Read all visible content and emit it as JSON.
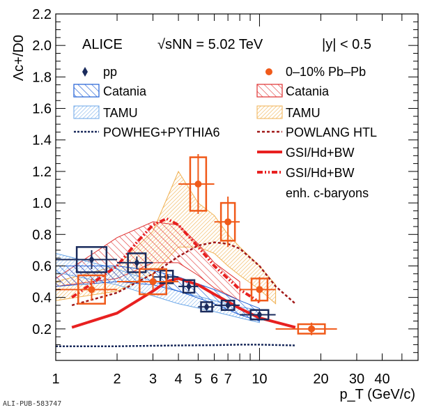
{
  "chart_data": {
    "type": "scatter",
    "title": "",
    "xlabel": "p_T (GeV/c)",
    "ylabel": "Λc+/D0",
    "xscale": "log",
    "xlim": [
      1,
      60
    ],
    "ylim": [
      0,
      2.2
    ],
    "x_ticks": [
      "1",
      "2",
      "3",
      "4",
      "5",
      "6",
      "7",
      "10",
      "20",
      "30",
      "40"
    ],
    "y_ticks": [
      "0.2",
      "0.4",
      "0.6",
      "0.8",
      "1.0",
      "1.2",
      "1.4",
      "1.6",
      "1.8",
      "2.0",
      "2.2"
    ],
    "annotations": {
      "experiment": "ALICE",
      "energy": "√sNN = 5.02 TeV",
      "rapidity": "|y| < 0.5"
    },
    "legend": {
      "placement": "top",
      "pp": "pp",
      "pbpb": "0–10% Pb–Pb",
      "catania_pp": "Catania",
      "catania_pbpb": "Catania",
      "tamu_pp": "TAMU",
      "tamu_pbpb": "TAMU",
      "powheg": "POWHEG+PYTHIA6",
      "powlang": "POWLANG HTL",
      "gsi": "GSI/Hd+BW",
      "gsi_enh": "GSI/Hd+BW",
      "gsi_enh_2": "enh. c-baryons"
    },
    "series": [
      {
        "name": "pp",
        "color": "#1a2b5c",
        "points": [
          {
            "x": 1.5,
            "y": 0.64,
            "xerr": 0.5,
            "yerr": 0.06,
            "sys": 0.08
          },
          {
            "x": 2.5,
            "y": 0.62,
            "xerr": 0.5,
            "yerr": 0.04,
            "sys": 0.06
          },
          {
            "x": 3.5,
            "y": 0.53,
            "xerr": 0.5,
            "yerr": 0.03,
            "sys": 0.04
          },
          {
            "x": 4.5,
            "y": 0.47,
            "xerr": 0.5,
            "yerr": 0.03,
            "sys": 0.04
          },
          {
            "x": 5.5,
            "y": 0.34,
            "xerr": 0.5,
            "yerr": 0.02,
            "sys": 0.03
          },
          {
            "x": 7.0,
            "y": 0.35,
            "xerr": 1.0,
            "yerr": 0.02,
            "sys": 0.03
          },
          {
            "x": 10.0,
            "y": 0.29,
            "xerr": 2.0,
            "yerr": 0.02,
            "sys": 0.03
          }
        ]
      },
      {
        "name": "0–10% Pb–Pb",
        "color": "#f05a1a",
        "points": [
          {
            "x": 1.5,
            "y": 0.45,
            "xerr": 0.5,
            "yerr": 0.07,
            "sys": 0.09
          },
          {
            "x": 3.0,
            "y": 0.5,
            "xerr": 1.0,
            "yerr": 0.05,
            "sys": 0.08
          },
          {
            "x": 5.0,
            "y": 1.12,
            "xerr": 1.0,
            "yerr": 0.19,
            "sys": 0.17
          },
          {
            "x": 7.0,
            "y": 0.88,
            "xerr": 1.0,
            "yerr": 0.16,
            "sys": 0.12
          },
          {
            "x": 10.0,
            "y": 0.45,
            "xerr": 2.0,
            "yerr": 0.08,
            "sys": 0.07
          },
          {
            "x": 18.0,
            "y": 0.2,
            "xerr": 6.0,
            "yerr": 0.04,
            "sys": 0.03
          }
        ]
      }
    ],
    "models": {
      "powheg_pp": {
        "x": [
          1,
          2,
          3,
          4,
          6,
          8,
          10,
          15
        ],
        "y": [
          0.09,
          0.09,
          0.093,
          0.095,
          0.097,
          0.1,
          0.1,
          0.095
        ]
      },
      "powlang_pbpb": {
        "x": [
          1.2,
          2,
          3,
          4,
          5,
          6,
          7,
          8,
          10,
          12,
          15
        ],
        "y": [
          0.35,
          0.43,
          0.55,
          0.66,
          0.73,
          0.75,
          0.74,
          0.71,
          0.6,
          0.47,
          0.36
        ]
      },
      "gsi_pbpb": {
        "x": [
          1.2,
          2,
          3,
          3.5,
          4,
          5,
          6,
          8,
          10,
          15
        ],
        "y": [
          0.21,
          0.3,
          0.44,
          0.5,
          0.52,
          0.48,
          0.42,
          0.33,
          0.27,
          0.21
        ]
      },
      "gsi_enh_pbpb": {
        "x": [
          1.2,
          2,
          2.5,
          3,
          3.5,
          4,
          5,
          6,
          8,
          10
        ],
        "y": [
          0.4,
          0.6,
          0.75,
          0.86,
          0.9,
          0.86,
          0.72,
          0.6,
          0.45,
          0.37
        ]
      },
      "catania_pp": {
        "x": [
          1,
          2,
          3,
          4,
          6,
          8,
          10
        ],
        "upper": [
          0.6,
          0.6,
          0.57,
          0.53,
          0.45,
          0.38,
          0.33
        ],
        "lower": [
          0.47,
          0.5,
          0.48,
          0.44,
          0.36,
          0.29,
          0.25
        ]
      },
      "tamu_pp": {
        "x": [
          1,
          2,
          3,
          4,
          6,
          8,
          10
        ],
        "upper": [
          0.68,
          0.58,
          0.5,
          0.44,
          0.38,
          0.34,
          0.32
        ],
        "lower": [
          0.56,
          0.48,
          0.41,
          0.36,
          0.31,
          0.27,
          0.24
        ]
      },
      "catania_pbpb": {
        "x": [
          1,
          2,
          3,
          4,
          5,
          6,
          8
        ],
        "upper": [
          0.52,
          0.78,
          0.88,
          0.86,
          0.74,
          0.62,
          0.5
        ],
        "lower": [
          0.47,
          0.52,
          0.62,
          0.62,
          0.54,
          0.46,
          0.38
        ]
      },
      "tamu_pbpb": {
        "x": [
          1,
          2,
          3,
          4,
          5,
          6,
          7,
          8,
          10,
          12
        ],
        "upper": [
          0.5,
          0.6,
          0.82,
          1.2,
          1.0,
          0.92,
          0.8,
          0.72,
          0.6,
          0.48
        ],
        "lower": [
          0.38,
          0.44,
          0.55,
          0.72,
          0.72,
          0.68,
          0.6,
          0.54,
          0.45,
          0.36
        ]
      }
    }
  },
  "footer": {
    "pub_id": "ALI-PUB-583747"
  }
}
